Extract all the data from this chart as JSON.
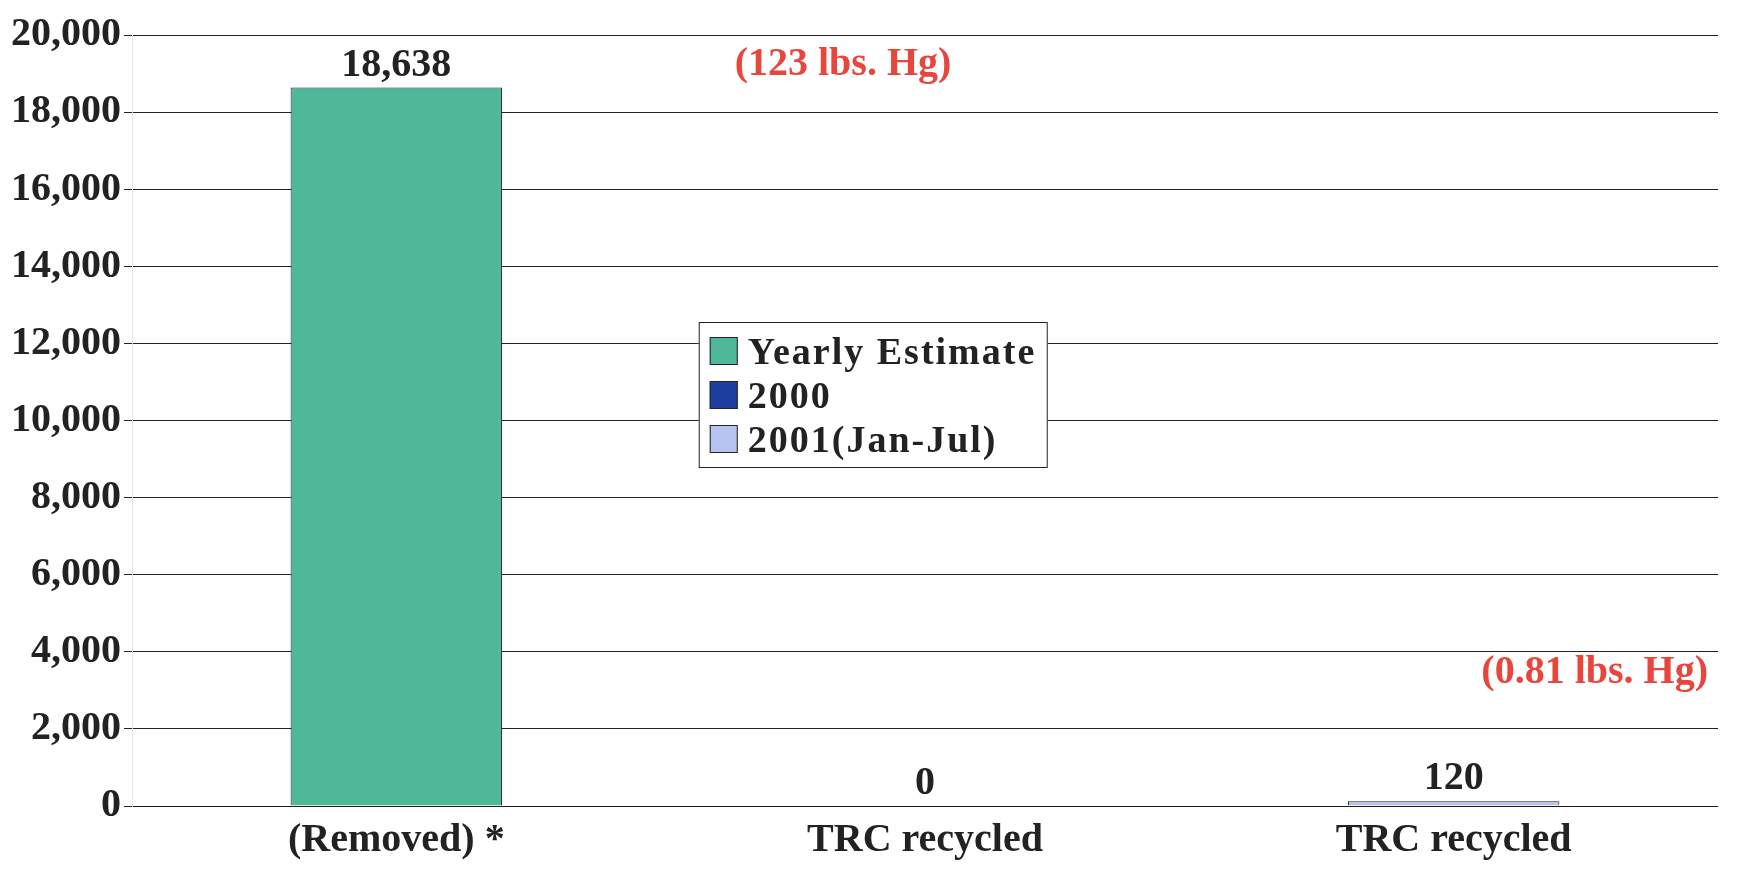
{
  "chart_data": {
    "type": "bar",
    "categories": [
      "(Removed) *",
      "TRC recycled",
      "TRC recycled"
    ],
    "series": [
      {
        "name": "Yearly Estimate",
        "color": "#4fb898",
        "values": [
          18638,
          null,
          null
        ],
        "value_labels": [
          "18,638",
          null,
          null
        ]
      },
      {
        "name": "2000",
        "color": "#1f3fa0",
        "values": [
          null,
          0,
          null
        ],
        "value_labels": [
          null,
          "0",
          null
        ]
      },
      {
        "name": "2001(Jan-Jul)",
        "color": "#b8c4f0",
        "values": [
          null,
          null,
          120
        ],
        "value_labels": [
          null,
          null,
          "120"
        ]
      }
    ],
    "ylim": [
      0,
      20000
    ],
    "yticks": [
      {
        "value": 0,
        "label": "0"
      },
      {
        "value": 2000,
        "label": "2,000"
      },
      {
        "value": 4000,
        "label": "4,000"
      },
      {
        "value": 6000,
        "label": "6,000"
      },
      {
        "value": 8000,
        "label": "8,000"
      },
      {
        "value": 10000,
        "label": "10,000"
      },
      {
        "value": 12000,
        "label": "12,000"
      },
      {
        "value": 14000,
        "label": "14,000"
      },
      {
        "value": 16000,
        "label": "16,000"
      },
      {
        "value": 18000,
        "label": "18,000"
      },
      {
        "value": 20000,
        "label": "20,000"
      }
    ],
    "grid": "y",
    "legend": "center",
    "annotations": [
      "(123 lbs. Hg)",
      "(0.81 lbs. Hg)"
    ]
  }
}
